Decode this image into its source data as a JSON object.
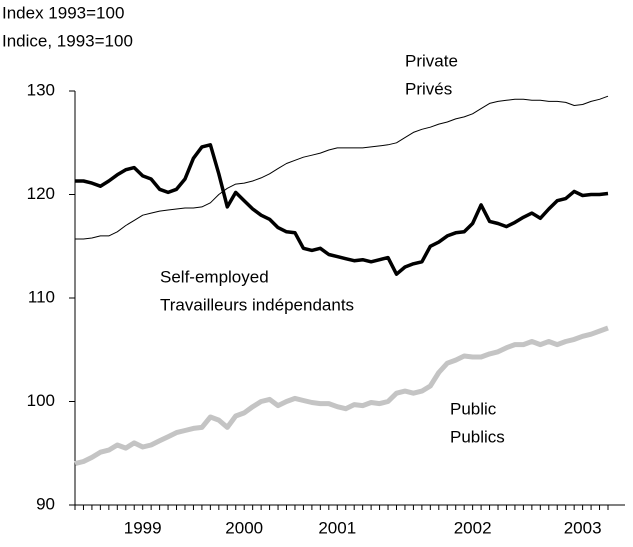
{
  "chart_data": {
    "type": "line",
    "y_axis_title": [
      "Index 1993=100",
      "Indice, 1993=100"
    ],
    "categories": [
      null,
      null,
      null,
      null,
      null,
      null,
      null,
      null,
      "1999",
      null,
      null,
      null,
      null,
      null,
      null,
      null,
      null,
      null,
      null,
      null,
      "2000",
      null,
      null,
      null,
      null,
      null,
      null,
      null,
      null,
      null,
      null,
      "2001",
      null,
      null,
      null,
      null,
      null,
      null,
      null,
      null,
      null,
      null,
      null,
      null,
      null,
      null,
      null,
      "2002",
      null,
      null,
      null,
      null,
      null,
      null,
      null,
      null,
      null,
      null,
      null,
      null,
      "2003",
      null,
      null,
      null
    ],
    "series": [
      {
        "name": "Private",
        "name_fr": "Privés",
        "color": "#000000",
        "width": 1,
        "values": [
          115.7,
          115.7,
          115.8,
          116,
          116,
          116.4,
          117,
          117.5,
          118,
          118.2,
          118.4,
          118.5,
          118.6,
          118.7,
          118.7,
          118.8,
          119.2,
          120,
          120.6,
          121,
          121.1,
          121.3,
          121.6,
          122,
          122.5,
          123,
          123.3,
          123.6,
          123.8,
          124,
          124.3,
          124.5,
          124.5,
          124.5,
          124.5,
          124.6,
          124.7,
          124.8,
          125,
          125.5,
          126,
          126.3,
          126.5,
          126.8,
          127,
          127.3,
          127.5,
          127.8,
          128.3,
          128.8,
          129,
          129.1,
          129.2,
          129.2,
          129.1,
          129.1,
          129,
          129,
          128.9,
          128.6,
          128.7,
          129,
          129.2,
          129.5
        ]
      },
      {
        "name": "Self-employed",
        "name_fr": "Travailleurs indépendants",
        "color": "#000000",
        "width": 3.5,
        "values": [
          121.3,
          121.3,
          121.1,
          120.8,
          121.3,
          121.9,
          122.4,
          122.6,
          121.8,
          121.5,
          120.5,
          120.2,
          120.5,
          121.5,
          123.5,
          124.6,
          124.8,
          122,
          118.8,
          120.2,
          119.4,
          118.6,
          118,
          117.6,
          116.8,
          116.4,
          116.3,
          114.8,
          114.6,
          114.8,
          114.2,
          114,
          113.8,
          113.6,
          113.7,
          113.5,
          113.7,
          113.9,
          112.3,
          113,
          113.3,
          113.5,
          115,
          115.4,
          116,
          116.3,
          116.4,
          117.2,
          119,
          117.4,
          117.2,
          116.9,
          117.3,
          117.8,
          118.2,
          117.7,
          118.6,
          119.4,
          119.6,
          120.3,
          119.9,
          120,
          120,
          120.1
        ]
      },
      {
        "name": "Public",
        "name_fr": "Publics",
        "color": "#c4c4c4",
        "width": 5,
        "values": [
          94,
          94.2,
          94.6,
          95.1,
          95.3,
          95.8,
          95.5,
          96,
          95.6,
          95.8,
          96.2,
          96.6,
          97,
          97.2,
          97.4,
          97.5,
          98.5,
          98.2,
          97.5,
          98.6,
          98.9,
          99.5,
          100,
          100.2,
          99.6,
          100,
          100.3,
          100.1,
          99.9,
          99.8,
          99.8,
          99.5,
          99.3,
          99.7,
          99.6,
          99.9,
          99.8,
          100,
          100.8,
          101,
          100.8,
          101,
          101.5,
          102.8,
          103.7,
          104,
          104.4,
          104.3,
          104.3,
          104.6,
          104.8,
          105.2,
          105.5,
          105.5,
          105.8,
          105.5,
          105.8,
          105.5,
          105.8,
          106,
          106.3,
          106.5,
          106.8,
          107.1
        ]
      }
    ],
    "ylim": [
      90,
      130
    ],
    "yticks": [
      90,
      100,
      110,
      120,
      130
    ]
  }
}
